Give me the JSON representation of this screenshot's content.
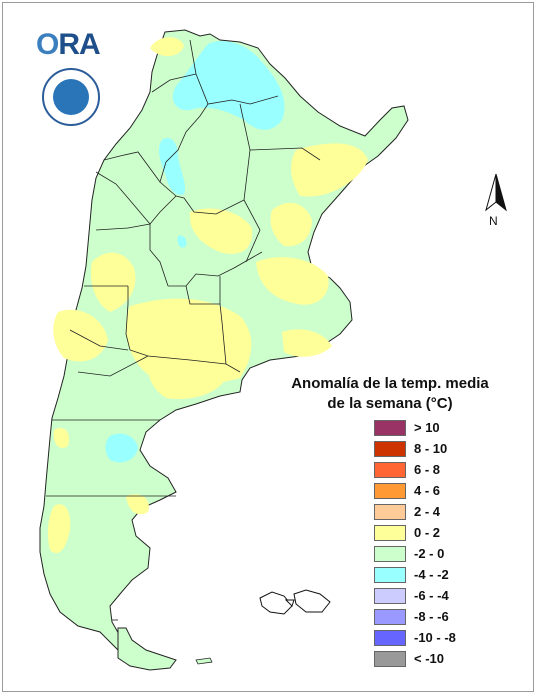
{
  "logo": {
    "text_o": "O",
    "text_rest": "RA"
  },
  "legend": {
    "title_line1": "Anomalía de la temp. media",
    "title_line2": "de la semana (°C)",
    "items": [
      {
        "label": "> 10",
        "color": "#993366"
      },
      {
        "label": "8 - 10",
        "color": "#cc3300"
      },
      {
        "label": "6 - 8",
        "color": "#ff6633"
      },
      {
        "label": "4 - 6",
        "color": "#ff9933"
      },
      {
        "label": "2 - 4",
        "color": "#ffcc99"
      },
      {
        "label": "0 - 2",
        "color": "#ffff99"
      },
      {
        "label": "-2 - 0",
        "color": "#ccffcc"
      },
      {
        "label": "-4 - -2",
        "color": "#99ffff"
      },
      {
        "label": "-6 - -4",
        "color": "#ccccff"
      },
      {
        "label": "-8 - -6",
        "color": "#9999ff"
      },
      {
        "label": "-10 - -8",
        "color": "#6666ff"
      },
      {
        "label": "< -10",
        "color": "#999999"
      }
    ]
  },
  "north_label": "N",
  "map_colors": {
    "base": "#ccffcc",
    "warm": "#ffff99",
    "cold": "#99ffff",
    "border": "#222222"
  }
}
